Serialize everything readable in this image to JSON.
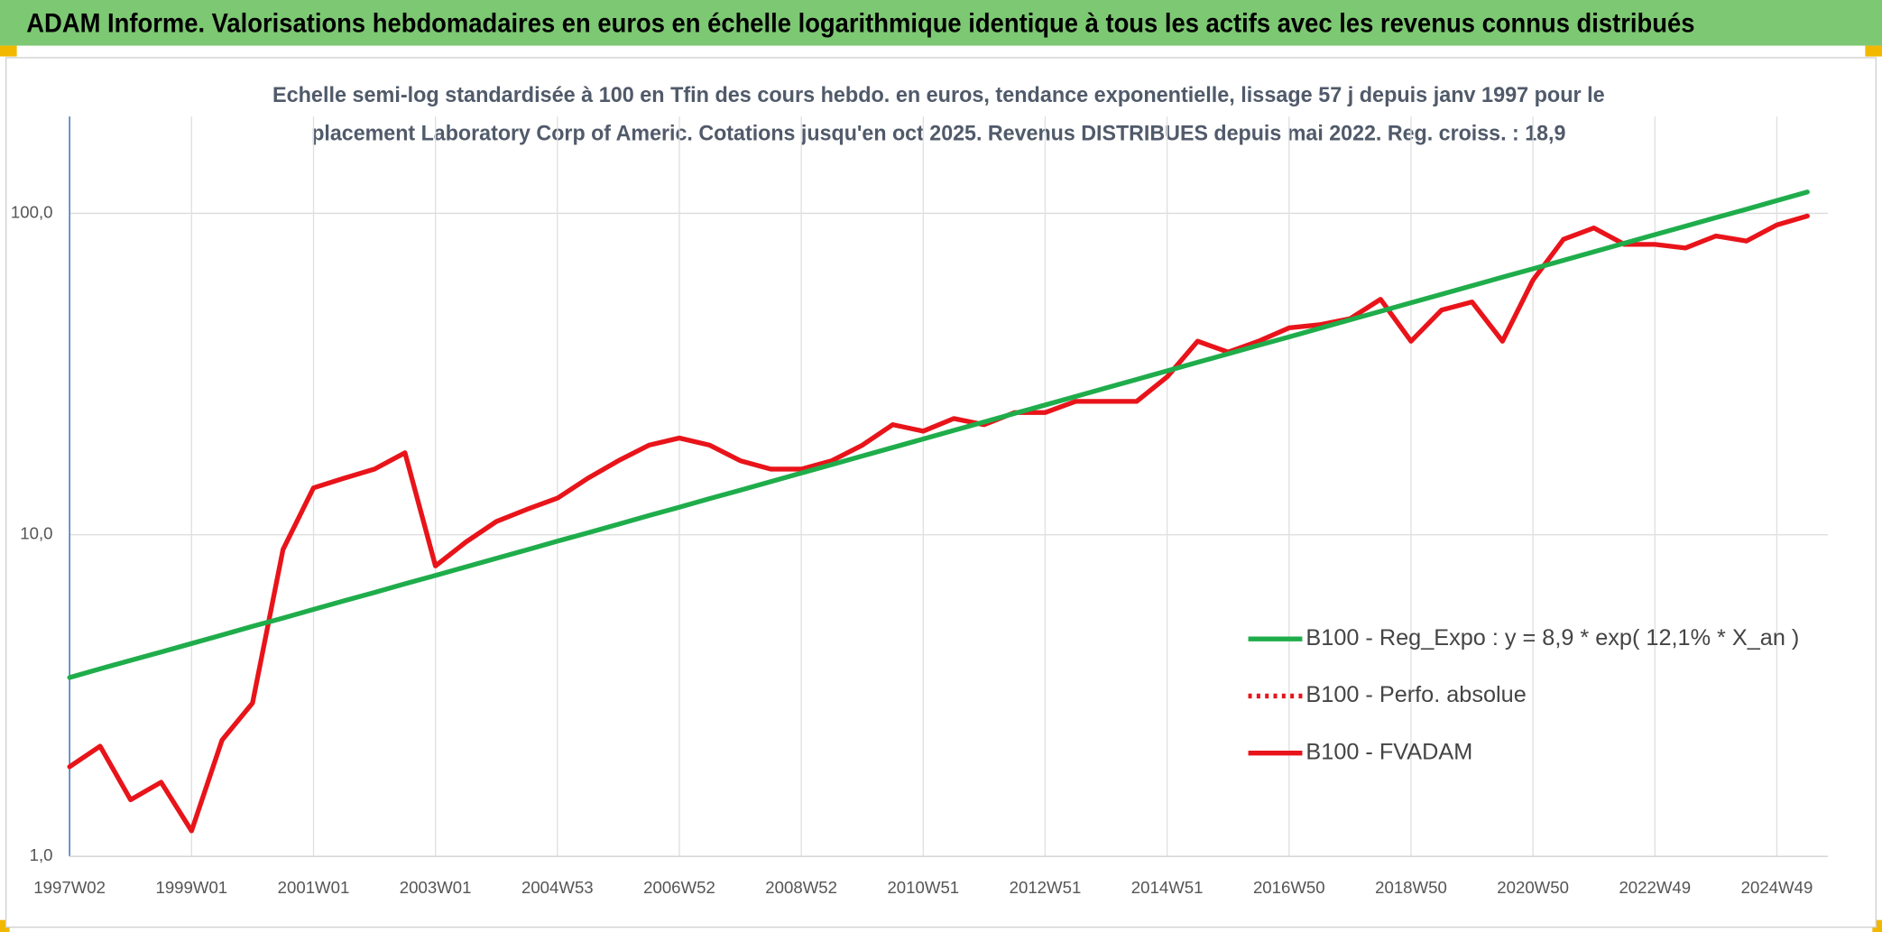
{
  "header": {
    "title": "ADAM Informe. Valorisations hebdomadaires en euros en échelle logarithmique identique à tous les actifs avec les revenus connus distribués"
  },
  "chart_data": {
    "type": "line",
    "title": [
      "Echelle semi-log standardisée à 100 en Tfin des cours hebdo. en euros, tendance exponentielle, lissage 57 j depuis janv 1997 pour le",
      "placement Laboratory Corp of Americ. Cotations jusqu'en oct 2025. Revenus DISTRIBUES depuis mai 2022. Reg. croiss. : 18,9"
    ],
    "categories": [
      "1997W02",
      null,
      null,
      null,
      "1999W01",
      null,
      null,
      null,
      "2001W01",
      null,
      null,
      null,
      "2003W01",
      null,
      null,
      null,
      "2004W53",
      null,
      null,
      null,
      "2006W52",
      null,
      null,
      null,
      "2008W52",
      null,
      null,
      null,
      "2010W51",
      null,
      null,
      null,
      "2012W51",
      null,
      null,
      null,
      "2014W51",
      null,
      null,
      null,
      "2016W50",
      null,
      null,
      null,
      "2018W50",
      null,
      null,
      null,
      "2020W50",
      null,
      null,
      null,
      "2022W49",
      null,
      null,
      null,
      "2024W49",
      null
    ],
    "log_scale": true,
    "ylim": [
      1,
      200
    ],
    "yticks": [
      {
        "value": 1,
        "label": "1,0"
      },
      {
        "value": 10,
        "label": "10,0"
      },
      {
        "value": 100,
        "label": "100,0"
      }
    ],
    "grid": true,
    "legend": "right",
    "series": [
      {
        "name": "B100 - Reg_Expo : y = 8,9 * exp( 12,1% *  X_an )",
        "color": "#1fad4b",
        "style": "solid",
        "values": [
          3.6,
          3.83,
          4.07,
          4.32,
          4.59,
          4.88,
          5.19,
          5.51,
          5.86,
          6.23,
          6.62,
          7.04,
          7.48,
          7.95,
          8.45,
          8.98,
          9.55,
          10.15,
          10.79,
          11.47,
          12.19,
          12.96,
          13.77,
          14.64,
          15.56,
          16.54,
          17.58,
          18.69,
          19.86,
          21.11,
          22.44,
          23.85,
          25.34,
          26.94,
          28.63,
          30.43,
          32.34,
          34.38,
          36.54,
          38.84,
          41.27,
          43.87,
          46.63,
          49.56,
          52.67,
          55.99,
          59.51,
          63.25,
          67.2,
          71.4,
          75.9,
          80.7,
          85.8,
          91.2,
          96.9,
          103.0,
          109.5,
          116.4
        ]
      },
      {
        "name": "B100 - Perfo. absolue",
        "color": "#e8141a",
        "style": "dotted"
      },
      {
        "name": "B100 - FVADAM",
        "color": "#e8141a",
        "style": "solid",
        "values": [
          1.9,
          2.2,
          1.5,
          1.7,
          1.2,
          2.3,
          3.0,
          9.0,
          14,
          15,
          16,
          18,
          8.0,
          9.5,
          11,
          12,
          13,
          15,
          17,
          19,
          20,
          19,
          17,
          16,
          16,
          17,
          19,
          22,
          21,
          23,
          22,
          24,
          24,
          26,
          26,
          26,
          31,
          40,
          37,
          40,
          44,
          45,
          47,
          54,
          40,
          50,
          53,
          40,
          62,
          83,
          90,
          80,
          80,
          78,
          85,
          82,
          92,
          98
        ]
      }
    ]
  }
}
